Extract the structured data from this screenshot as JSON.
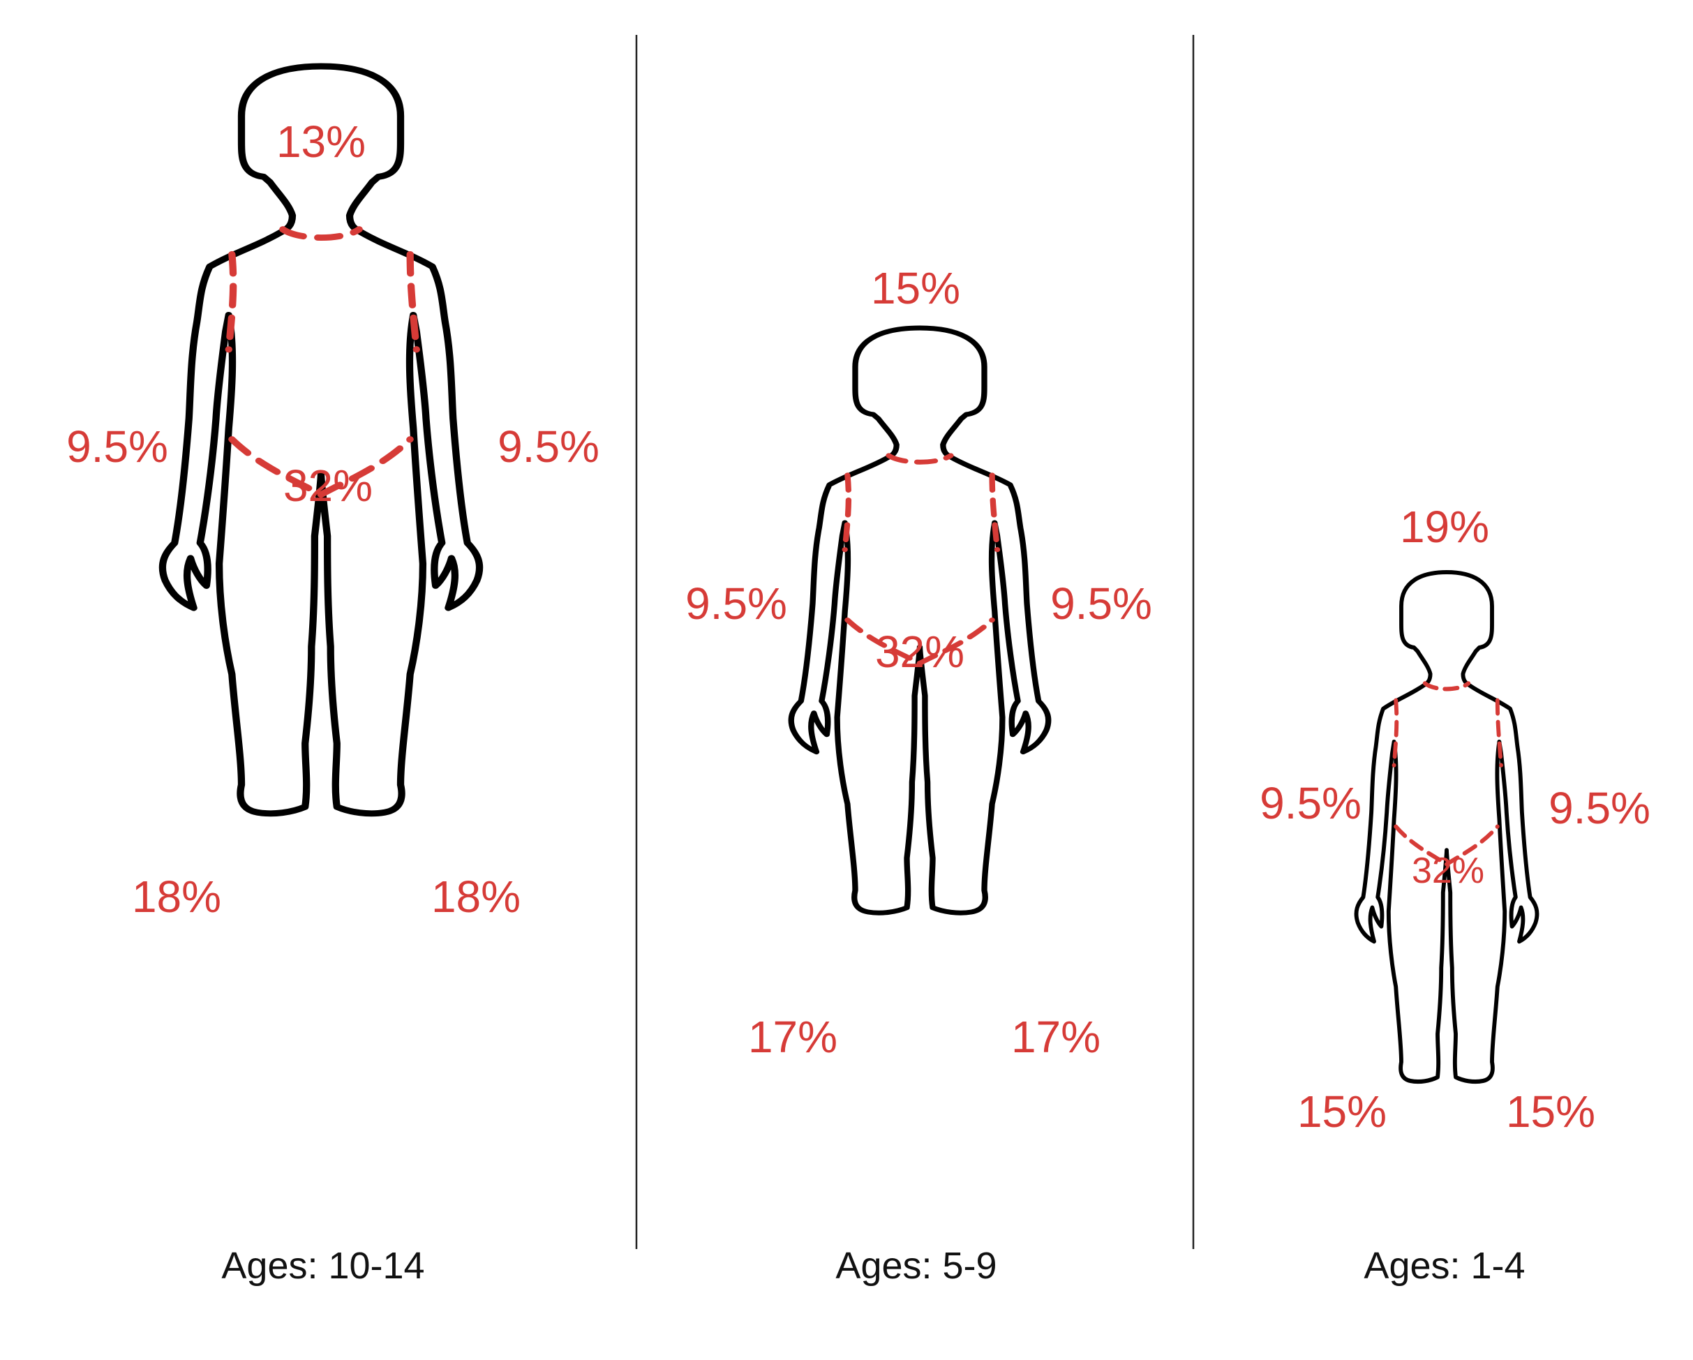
{
  "figures": [
    {
      "age_label": "Ages: 10-14",
      "head": "13%",
      "arm_left": "9.5%",
      "arm_right": "9.5%",
      "trunk": "32%",
      "leg_left": "18%",
      "leg_right": "18%"
    },
    {
      "age_label": "Ages: 5-9",
      "head": "15%",
      "arm_left": "9.5%",
      "arm_right": "9.5%",
      "trunk": "32%",
      "leg_left": "17%",
      "leg_right": "17%"
    },
    {
      "age_label": "Ages: 1-4",
      "head": "19%",
      "arm_left": "9.5%",
      "arm_right": "9.5%",
      "trunk": "32%",
      "leg_left": "15%",
      "leg_right": "15%"
    }
  ],
  "colors": {
    "percent_label": "#d63b37",
    "outline": "#000000",
    "region_boundary": "#d63b37"
  }
}
